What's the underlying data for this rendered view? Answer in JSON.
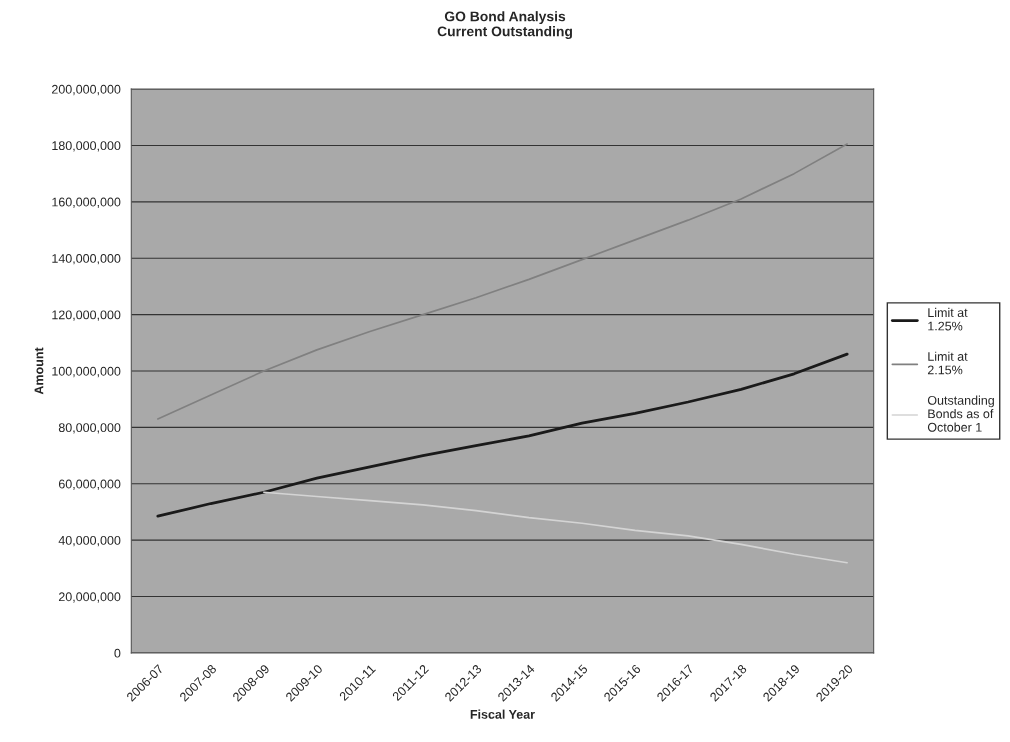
{
  "chart_data": {
    "type": "line",
    "title": "GO Bond Analysis\nCurrent Outstanding",
    "xlabel": "Fiscal Year",
    "ylabel": "Amount",
    "categories": [
      "2006-07",
      "2007-08",
      "2008-09",
      "2009-10",
      "2010-11",
      "2011-12",
      "2012-13",
      "2013-14",
      "2014-15",
      "2015-16",
      "2016-17",
      "2017-18",
      "2018-19",
      "2019-20"
    ],
    "series": [
      {
        "name": "Limit at\n1.25%",
        "color": "#1a1a1a",
        "values": [
          48500000,
          53000000,
          57000000,
          62000000,
          66000000,
          70000000,
          73500000,
          77000000,
          81500000,
          85000000,
          89000000,
          93500000,
          99000000,
          106000000
        ]
      },
      {
        "name": "Limit at\n2.15%",
        "color": "#808080",
        "values": [
          83000000,
          91500000,
          100000000,
          107500000,
          114000000,
          120000000,
          126000000,
          132500000,
          139500000,
          146500000,
          153500000,
          161000000,
          170000000,
          180500000
        ]
      },
      {
        "name": "Outstanding\nBonds as of\nOctober 1",
        "color": "#d4d4d4",
        "values": [
          null,
          null,
          57000000,
          55500000,
          54000000,
          52500000,
          50500000,
          48000000,
          46000000,
          43500000,
          41500000,
          38500000,
          35000000,
          32000000
        ]
      }
    ],
    "ylim": [
      0,
      200000000
    ],
    "yticks": [
      {
        "value": 0,
        "label": "0"
      },
      {
        "value": 20000000,
        "label": "20,000,000"
      },
      {
        "value": 40000000,
        "label": "40,000,000"
      },
      {
        "value": 60000000,
        "label": "60,000,000"
      },
      {
        "value": 80000000,
        "label": "80,000,000"
      },
      {
        "value": 100000000,
        "label": "100,000,000"
      },
      {
        "value": 120000000,
        "label": "120,000,000"
      },
      {
        "value": 140000000,
        "label": "140,000,000"
      },
      {
        "value": 160000000,
        "label": "160,000,000"
      },
      {
        "value": 180000000,
        "label": "180,000,000"
      },
      {
        "value": 200000000,
        "label": "200,000,000"
      }
    ],
    "grid": "y",
    "legend": "right",
    "marker": "none",
    "line_style": "solid"
  }
}
